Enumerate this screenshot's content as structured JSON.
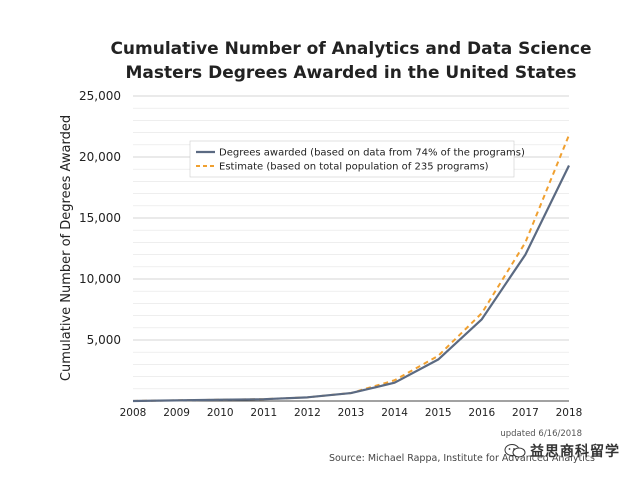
{
  "chart_data": {
    "type": "line",
    "title_lines": [
      "Cumulative Number of Analytics and Data Science",
      "Masters Degrees Awarded in the United States"
    ],
    "ylabel": "Cumulative Number of Degrees Awarded",
    "xlabel": "",
    "x": [
      2008,
      2009,
      2010,
      2011,
      2012,
      2013,
      2014,
      2015,
      2016,
      2017,
      2018
    ],
    "xlim": [
      2008,
      2018
    ],
    "ylim": [
      0,
      25000
    ],
    "y_ticks": [
      5000,
      10000,
      15000,
      20000,
      25000
    ],
    "y_tick_labels": [
      "5,000",
      "10,000",
      "15,000",
      "20,000",
      "25,000"
    ],
    "x_tick_labels": [
      "2008",
      "2009",
      "2010",
      "2011",
      "2012",
      "2013",
      "2014",
      "2015",
      "2016",
      "2017",
      "2018"
    ],
    "grid": "horizontal",
    "legend_position": "top-center",
    "series": [
      {
        "name": "Degrees awarded (based on data from 74% of the programs)",
        "style": "solid",
        "color": "#5b6a82",
        "values": [
          0,
          50,
          100,
          150,
          300,
          650,
          1500,
          3400,
          6700,
          12000,
          19300
        ]
      },
      {
        "name": "Estimate (based on total population of 235 programs)",
        "style": "dashed",
        "color": "#f0a030",
        "values": [
          0,
          50,
          100,
          150,
          300,
          650,
          1700,
          3700,
          7200,
          13000,
          21800
        ]
      }
    ],
    "note": "updated 6/16/2018",
    "source": "Source: Michael Rappa, Institute for Advanced Analytics"
  },
  "watermark": {
    "text": "益思商科留学",
    "icon": "wechat-icon"
  }
}
